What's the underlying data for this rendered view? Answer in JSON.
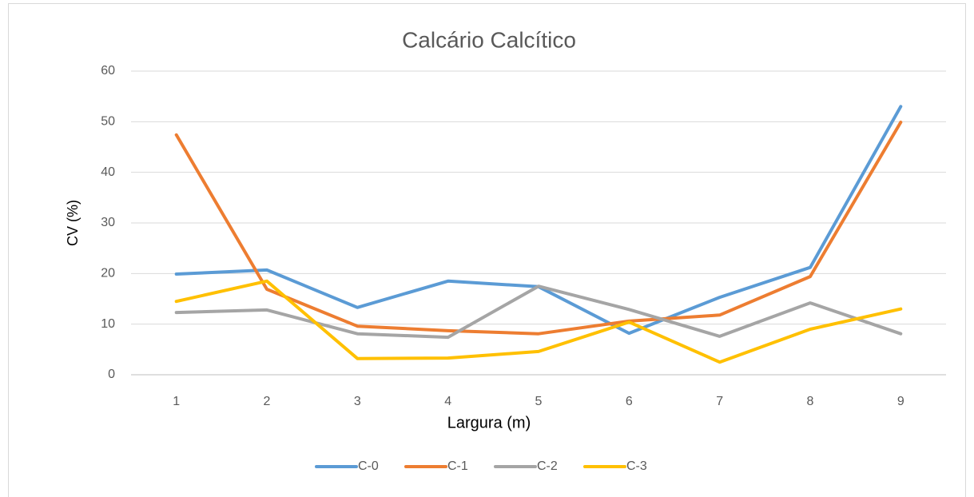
{
  "chart_data": {
    "type": "line",
    "title": "Calcário Calcítico",
    "x_label": "Largura (m)",
    "y_label": "CV (%)",
    "categories": [
      "1",
      "2",
      "3",
      "4",
      "5",
      "6",
      "7",
      "8",
      "9"
    ],
    "series": [
      {
        "name": "C-0",
        "color": "#5b9bd5",
        "values": [
          19.9,
          20.7,
          13.3,
          18.5,
          17.4,
          8.2,
          15.3,
          21.2,
          53
        ]
      },
      {
        "name": "C-1",
        "color": "#ed7d31",
        "values": [
          47.4,
          16.9,
          9.6,
          8.7,
          8.1,
          10.6,
          11.8,
          19.4,
          49.9
        ]
      },
      {
        "name": "C-2",
        "color": "#a5a5a5",
        "values": [
          12.3,
          12.8,
          8.1,
          7.4,
          17.5,
          12.9,
          7.6,
          14.2,
          8.1
        ]
      },
      {
        "name": "C-3",
        "color": "#ffc000",
        "values": [
          14.5,
          18.5,
          3.2,
          3.3,
          4.6,
          10.4,
          2.5,
          9.0,
          13.0
        ]
      }
    ],
    "ylim": [
      0,
      60
    ],
    "yticks": [
      0,
      10,
      20,
      30,
      40,
      50,
      60
    ],
    "grid": true,
    "legend": "bottom"
  }
}
